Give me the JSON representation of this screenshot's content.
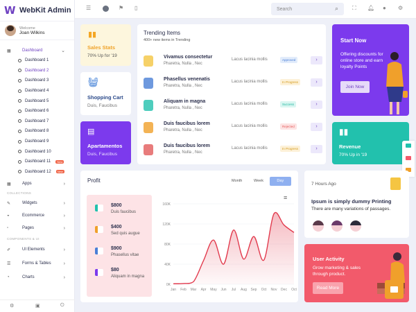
{
  "brand": {
    "name": "WebKit Admin"
  },
  "user": {
    "welcome": "Welcome",
    "name": "Joan Wilkins"
  },
  "sidebar": {
    "dashboard": "Dashboard",
    "sub_items": [
      "Dashboard 1",
      "Dashboard 2",
      "Dashboard 3",
      "Dashboard 4",
      "Dashboard 5",
      "Dashboard 6",
      "Dashboard 7",
      "Dashboard 8",
      "Dashboard 9",
      "Dashboard 10",
      "Dashboard 11",
      "Dashboard 12"
    ],
    "new_badge": "New",
    "apps": "Apps",
    "section_collections": "COLLECTIONS",
    "widgets": "Widgets",
    "ecommerce": "Ecommerce",
    "pages": "Pages",
    "section_components": "COMPONENTS & UI",
    "ui_elements": "UI Elements",
    "forms_tables": "Forms & Tables",
    "charts": "Charts"
  },
  "search": {
    "placeholder": "Search"
  },
  "sales_stats": {
    "title": "Sales Stats",
    "sub": "70% Up for '19"
  },
  "shopping_cart": {
    "title": "Shopping Cart",
    "sub": "Duis, Faucibus"
  },
  "apartamentos": {
    "title": "Apartamentos",
    "sub": "Duis, Faucibus"
  },
  "trending": {
    "title": "Trending Items",
    "sub": "400+ new items in Trending",
    "rows": [
      {
        "name": "Vivamus consectetur",
        "desc": "Pharetra, Nulla , Nec",
        "loc": "Lacus lacinia mollis",
        "status": "Approved",
        "status_bg": "#e2ecfb",
        "status_fg": "#4a7fd6"
      },
      {
        "name": "Phasellus venenatis",
        "desc": "Pharetra, Nulla , Nec",
        "loc": "Lacus lacinia mollis",
        "status": "In Progress",
        "status_bg": "#fdf1d8",
        "status_fg": "#d39a1a"
      },
      {
        "name": "Aliquam in magna",
        "desc": "Pharetra, Nulla , Nec",
        "loc": "Lacus lacinia mollis",
        "status": "Success",
        "status_bg": "#d9f6f1",
        "status_fg": "#1fb6a0"
      },
      {
        "name": "Duis faucibus lorem",
        "desc": "Pharetra, Nulla , Nec",
        "loc": "Lacus lacinia mollis",
        "status": "Rejected",
        "status_bg": "#fde3e3",
        "status_fg": "#e55b5b"
      },
      {
        "name": "Duis faucibus lorem",
        "desc": "Pharetra, Nulla , Nec",
        "loc": "Lacus lacinia mollis",
        "status": "In Progress",
        "status_bg": "#fdf1d8",
        "status_fg": "#d39a1a"
      }
    ]
  },
  "start_now": {
    "title": "Start Now",
    "text": "Offering discounts for online store and earn loyalty Points",
    "button": "Join Now"
  },
  "revenue": {
    "title": "Revenue",
    "sub": "70% Up in '19"
  },
  "profit": {
    "title": "Profit",
    "tabs": [
      "Month",
      "Week",
      "Day"
    ],
    "active_tab": "Day",
    "items": [
      {
        "value": "$800",
        "desc": "Duis faucibus"
      },
      {
        "value": "$400",
        "desc": "Sed quis augue"
      },
      {
        "value": "$900",
        "desc": "Phasellus vitae"
      },
      {
        "value": "$80",
        "desc": "Aliquam in magna"
      }
    ],
    "menu_icon": "hamburger-icon"
  },
  "chart_data": {
    "type": "area",
    "categories": [
      "Jan",
      "Feb",
      "Mar",
      "Apr",
      "May",
      "Jun",
      "Jul",
      "Aug",
      "Sep",
      "Oct",
      "Nov",
      "Dec",
      "Oct"
    ],
    "values": [
      1000,
      1500,
      5000,
      47000,
      88000,
      40000,
      108000,
      50000,
      95000,
      48000,
      140000,
      118000,
      103000
    ],
    "ylim": [
      0,
      160000
    ],
    "yticks": [
      "0K",
      "40K",
      "80K",
      "120K",
      "160K"
    ],
    "color": "#e23b4e"
  },
  "news": {
    "time": "7 Hours Ago",
    "title": "Ipsum is simply dummy Printing",
    "text": "There are many variations of passages."
  },
  "activity": {
    "title": "User Activity",
    "text": "Grow marketing & sales through product.",
    "button": "Read More"
  },
  "colors": {
    "accent": "#6f42c1",
    "purple": "#7c3aed",
    "teal": "#22c1ad",
    "pink": "#f25a6b",
    "yellow_card": "#fdf6dd"
  }
}
